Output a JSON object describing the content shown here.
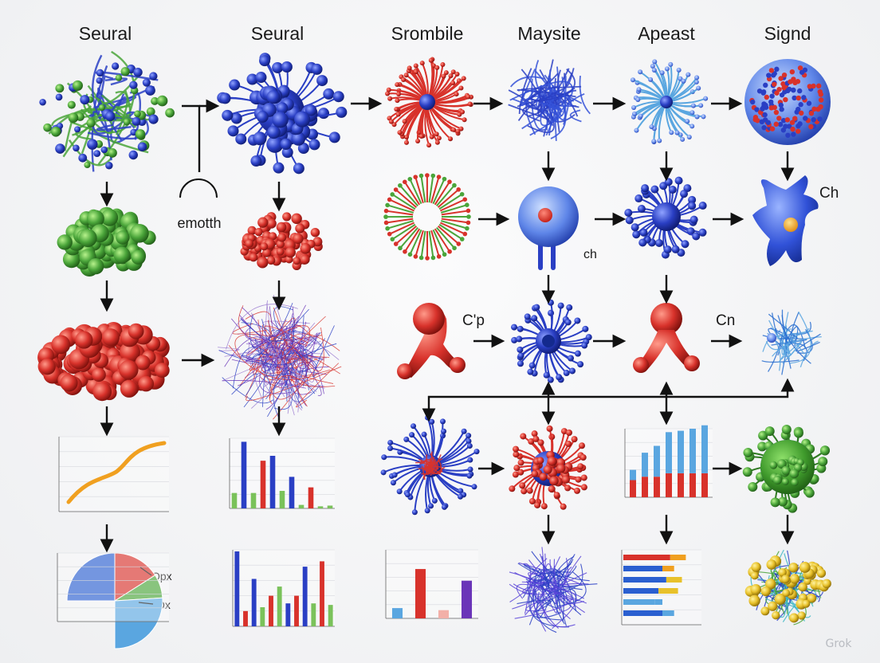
{
  "titles": [
    "Seural",
    "Seural",
    "Srombile",
    "Maysite",
    "Apeast",
    "Signd"
  ],
  "labels": {
    "emotth": "emotth",
    "ch_top": "Ch",
    "ch_mid": "ch",
    "cp": "C'p",
    "cn": "Cn",
    "opx": "Opx",
    "ox": "Ox"
  },
  "watermark": "Grok",
  "colors": {
    "blue": "#2a3fc4",
    "green": "#4aa53a",
    "red": "#d8322b",
    "orange": "#f0a020",
    "light_blue": "#5aa6e0",
    "yellow": "#e8c12a",
    "purple": "#6a35b8"
  }
}
